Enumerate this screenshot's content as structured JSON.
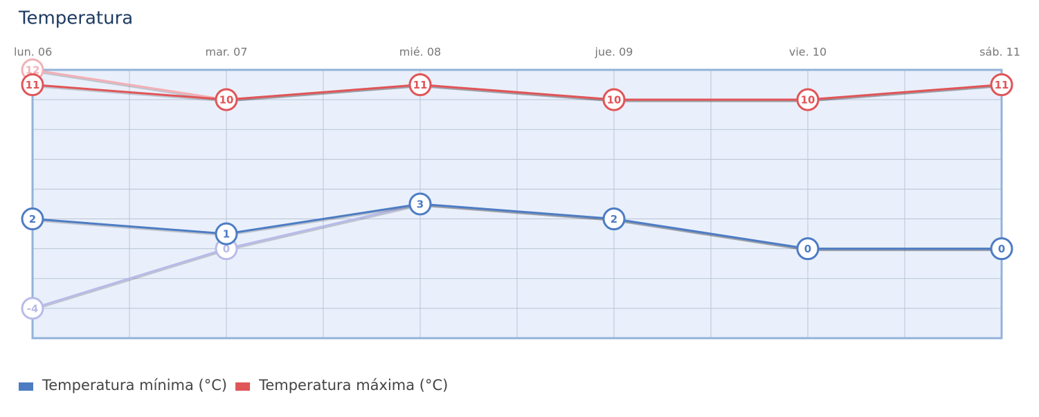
{
  "chart_data": {
    "type": "line",
    "title": "Temperatura",
    "categories": [
      "lun. 06",
      "mar. 07",
      "mié. 08",
      "jue. 09",
      "vie. 10",
      "sáb. 11"
    ],
    "series": [
      {
        "color": "#b7bbe9",
        "values": [
          -4,
          0,
          3,
          2,
          0,
          0
        ]
      },
      {
        "color": "#f2b0b6",
        "values": [
          12,
          10,
          11,
          10,
          10,
          11
        ]
      },
      {
        "name": "Temperatura mínima (°C)",
        "color": "#4d7cc3",
        "values": [
          2,
          1,
          3,
          2,
          0,
          0
        ]
      },
      {
        "name": "Temperatura máxima (°C)",
        "color": "#e05558",
        "values": [
          11,
          10,
          11,
          10,
          10,
          11
        ]
      }
    ],
    "ylim": [
      -6,
      12
    ],
    "yticks": [
      -6,
      -4,
      -2,
      0,
      2,
      4,
      6,
      8,
      10,
      12
    ],
    "grid": true
  }
}
